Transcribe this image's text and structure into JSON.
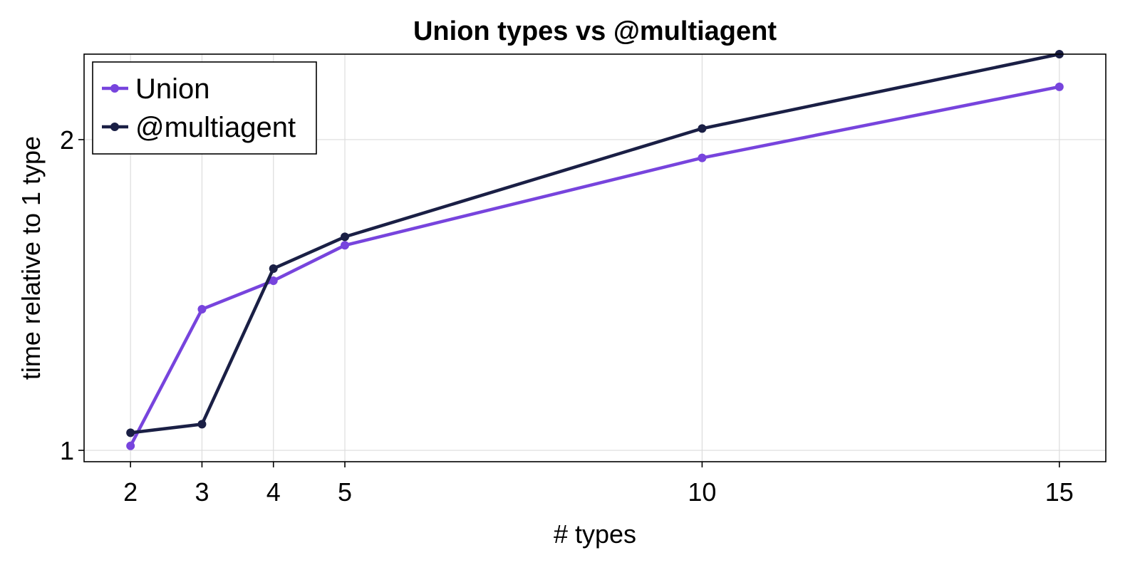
{
  "chart_data": {
    "type": "line",
    "title": "Union types vs @multiagent",
    "xlabel": "# types",
    "ylabel": "time relative to 1 type",
    "yscale": "log",
    "xlim": [
      1.35,
      15.65
    ],
    "ylim": [
      0.975,
      2.42
    ],
    "x_ticks": [
      2,
      3,
      4,
      5,
      10,
      15
    ],
    "y_ticks": [
      1,
      2
    ],
    "grid": true,
    "legend_position": "top-left",
    "x": [
      2,
      3,
      4,
      5,
      10,
      15
    ],
    "series": [
      {
        "name": "Union",
        "color": "#7744dd",
        "values": [
          1.01,
          1.37,
          1.46,
          1.58,
          1.92,
          2.25
        ]
      },
      {
        "name": "@multiagent",
        "color": "#1a1f45",
        "values": [
          1.04,
          1.06,
          1.5,
          1.61,
          2.05,
          2.42
        ]
      }
    ]
  }
}
